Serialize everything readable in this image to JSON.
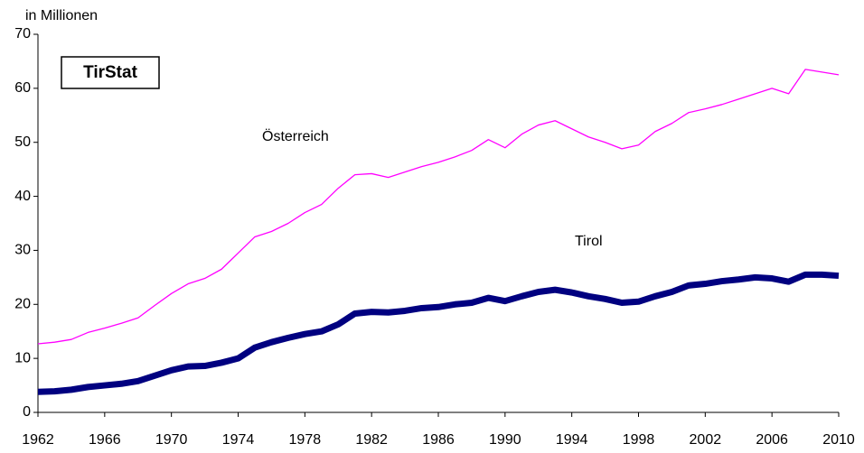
{
  "chart_data": {
    "type": "line",
    "y_label": "in Millionen",
    "annotation": "TirStat",
    "x": [
      1962,
      1963,
      1964,
      1965,
      1966,
      1967,
      1968,
      1969,
      1970,
      1971,
      1972,
      1973,
      1974,
      1975,
      1976,
      1977,
      1978,
      1979,
      1980,
      1981,
      1982,
      1983,
      1984,
      1985,
      1986,
      1987,
      1988,
      1989,
      1990,
      1991,
      1992,
      1993,
      1994,
      1995,
      1996,
      1997,
      1998,
      1999,
      2000,
      2001,
      2002,
      2003,
      2004,
      2005,
      2006,
      2007,
      2008,
      2009,
      2010
    ],
    "series": [
      {
        "name": "Österreich",
        "color": "#ff00ff",
        "values": [
          12.7,
          13.0,
          13.5,
          14.8,
          15.6,
          16.5,
          17.5,
          19.8,
          22.0,
          23.8,
          24.8,
          26.5,
          29.5,
          32.5,
          33.5,
          35.0,
          37.0,
          38.5,
          41.5,
          44.0,
          44.2,
          43.5,
          44.5,
          45.5,
          46.3,
          47.3,
          48.5,
          50.5,
          49.0,
          51.5,
          53.2,
          54.0,
          52.5,
          51.0,
          50.0,
          48.8,
          49.5,
          52.0,
          53.5,
          55.5,
          56.2,
          57.0,
          58.0,
          59.0,
          60.0,
          59.0,
          63.5,
          63.0,
          62.5
        ]
      },
      {
        "name": "Tirol",
        "color": "#000080",
        "values": [
          3.8,
          3.9,
          4.2,
          4.7,
          5.0,
          5.3,
          5.8,
          6.8,
          7.8,
          8.5,
          8.6,
          9.2,
          10.0,
          12.0,
          13.0,
          13.8,
          14.5,
          15.0,
          16.3,
          18.3,
          18.6,
          18.5,
          18.8,
          19.3,
          19.5,
          20.0,
          20.3,
          21.2,
          20.6,
          21.5,
          22.3,
          22.7,
          22.2,
          21.5,
          21.0,
          20.3,
          20.5,
          21.5,
          22.3,
          23.5,
          23.8,
          24.3,
          24.6,
          25.0,
          24.8,
          24.2,
          25.5,
          25.5,
          25.3
        ]
      }
    ],
    "xlim": [
      1962,
      2010
    ],
    "xticks": [
      1962,
      1966,
      1970,
      1974,
      1978,
      1982,
      1986,
      1990,
      1994,
      1998,
      2002,
      2006,
      2010
    ],
    "ylim": [
      0,
      70
    ],
    "yticks": [
      0,
      10,
      20,
      30,
      40,
      50,
      60,
      70
    ],
    "grid": false
  }
}
